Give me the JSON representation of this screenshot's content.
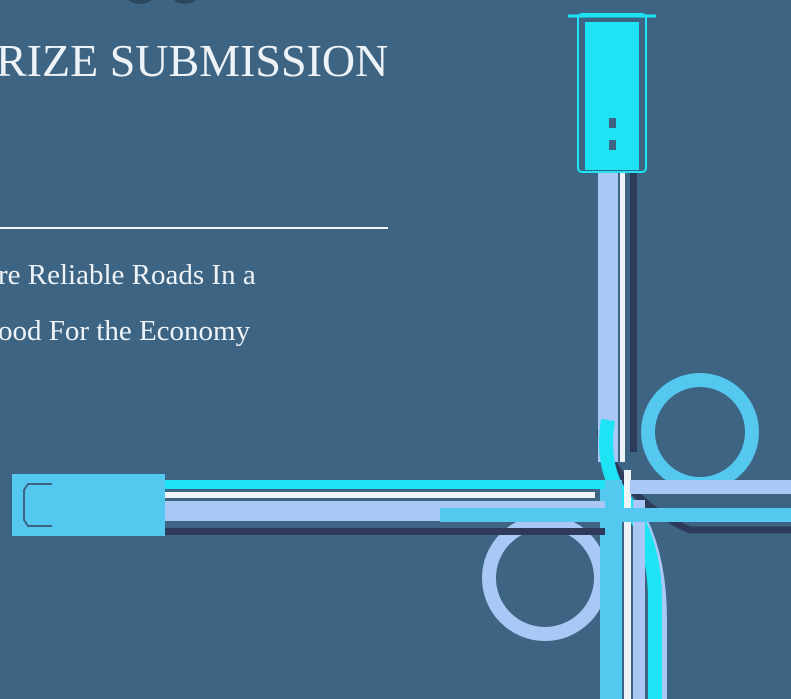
{
  "header": {
    "title": "RIZE SUBMISSION",
    "subtitle_lines": [
      "re Reliable Roads In a",
      "ood For the Economy"
    ]
  }
}
